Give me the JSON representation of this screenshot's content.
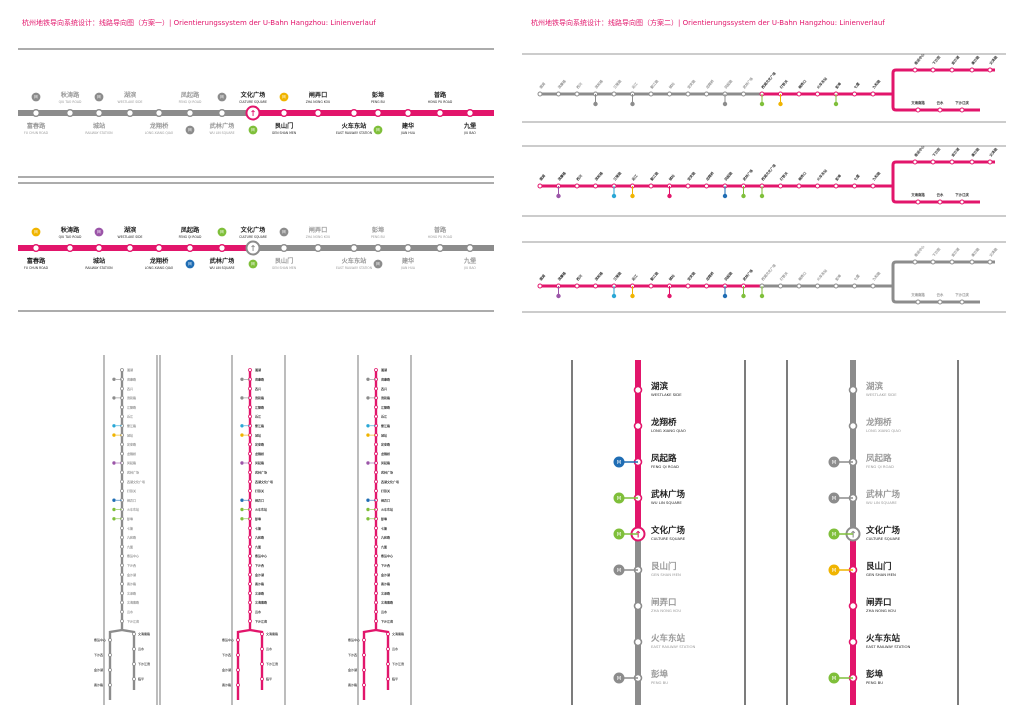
{
  "titles": {
    "left": "杭州地铁导向系统设计：线路导向图（方案一）| Orientierungssystem der U-Bahn Hangzhou:  Linienverlauf",
    "right": "杭州地铁导向系统设计：线路导向图（方案二）| Orientierungssystem der U-Bahn Hangzhou:  Linienverlauf"
  },
  "colors": {
    "line": "#e2156b",
    "grey": "#8c8c8c",
    "m2": "#1f6db4",
    "m3": "#7fbf3a",
    "m4": "#f0b400",
    "m5": "#9b55a8",
    "m6": "#2aa7d6",
    "m1": "#e2156b"
  },
  "stations": [
    {
      "cn": "富春路",
      "en": "FU CHUN ROAD",
      "row": "bottom"
    },
    {
      "cn": "秋涛路",
      "en": "QIU TAO ROAD",
      "row": "top"
    },
    {
      "cn": "城站",
      "en": "RAILWAY STATION",
      "row": "bottom"
    },
    {
      "cn": "湖滨",
      "en": "WESTLAKE SIDE",
      "row": "top"
    },
    {
      "cn": "龙翔桥",
      "en": "LONG XIANG QIAO",
      "row": "bottom"
    },
    {
      "cn": "凤起路",
      "en": "FENG QI ROAD",
      "row": "top"
    },
    {
      "cn": "武林广场",
      "en": "WU LIN SQUARE",
      "row": "bottom"
    },
    {
      "cn": "文化广场",
      "en": "CULTURE SQUARE",
      "row": "top"
    },
    {
      "cn": "艮山门",
      "en": "GEN SHAN MEN",
      "row": "bottom"
    },
    {
      "cn": "闸弄口",
      "en": "ZHA NONG KOU",
      "row": "top"
    },
    {
      "cn": "火车东站",
      "en": "EAST RAILWAY STATION",
      "row": "bottom"
    },
    {
      "cn": "彭埠",
      "en": "PENG BU",
      "row": "top"
    },
    {
      "cn": "建华",
      "en": "JIAN HUA",
      "row": "bottom"
    },
    {
      "cn": "普路",
      "en": "HONG PU ROAD",
      "row": "top"
    },
    {
      "cn": "九堡",
      "en": "JIU BAO",
      "row": "bottom"
    }
  ],
  "transfer_badge": "M",
  "vertical_big": [
    {
      "cn": "湖滨",
      "en": "WESTLAKE SIDE"
    },
    {
      "cn": "龙翔桥",
      "en": "LONG XIANG QIAO"
    },
    {
      "cn": "凤起路",
      "en": "FENG QI ROAD"
    },
    {
      "cn": "武林广场",
      "en": "WU LIN SQUARE"
    },
    {
      "cn": "文化广场",
      "en": "CULTURE SQUARE"
    },
    {
      "cn": "艮山门",
      "en": "GEN SHAN MEN"
    },
    {
      "cn": "闸弄口",
      "en": "ZHA NONG KOU"
    },
    {
      "cn": "火车东站",
      "en": "EAST RAILWAY STATION"
    },
    {
      "cn": "彭埠",
      "en": "PENG BU"
    }
  ],
  "small_labels": [
    "湘湖",
    "滨康路",
    "西兴",
    "滨和路",
    "江陵路",
    "近江",
    "婺江路",
    "城站",
    "定安路",
    "龙翔桥",
    "凤起路",
    "武林广场",
    "西湖文化广场",
    "打铁关",
    "闸弄口",
    "火车东站",
    "彭埠",
    "七堡",
    "九和路",
    "九堡",
    "客运中心",
    "下沙西",
    "金沙湖",
    "高沙路",
    "文泽路",
    "文海南路",
    "云水",
    "下沙江滨",
    "临平",
    "南苑",
    "余杭高铁站",
    "翁梅",
    "乔司南",
    "乔司",
    "三墩"
  ]
}
